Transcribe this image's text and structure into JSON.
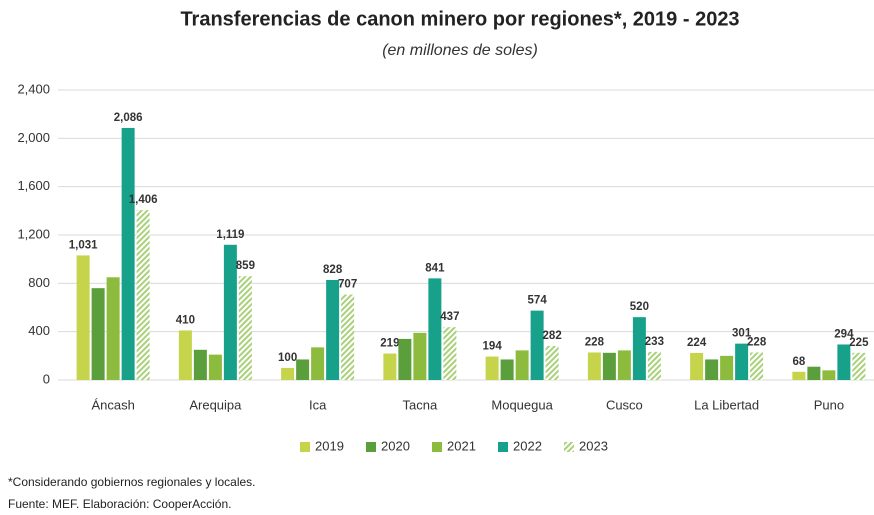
{
  "chart_data": {
    "type": "bar",
    "title": "Transferencias de canon minero por regiones*, 2019 - 2023",
    "subtitle": "(en millones de soles)",
    "categories": [
      "Áncash",
      "Arequipa",
      "Ica",
      "Tacna",
      "Moquegua",
      "Cusco",
      "La Libertad",
      "Puno"
    ],
    "series": [
      {
        "name": "2019",
        "color": "#c5d44a",
        "label_color": "#a8b832",
        "values": [
          1031,
          410,
          100,
          219,
          194,
          228,
          224,
          68
        ],
        "value_labels": [
          "1,031",
          "410",
          "100",
          "219",
          "194",
          "228",
          "224",
          "68"
        ]
      },
      {
        "name": "2020",
        "color": "#5b9e3c",
        "values": [
          760,
          250,
          170,
          340,
          170,
          225,
          170,
          110
        ]
      },
      {
        "name": "2021",
        "color": "#8dbb3d",
        "values": [
          850,
          210,
          270,
          390,
          245,
          245,
          200,
          80
        ]
      },
      {
        "name": "2022",
        "color": "#17a08a",
        "label_color": "#17a08a",
        "values": [
          2086,
          1119,
          828,
          841,
          574,
          520,
          301,
          294
        ],
        "value_labels": [
          "2,086",
          "1,119",
          "828",
          "841",
          "574",
          "520",
          "301",
          "294"
        ]
      },
      {
        "name": "2023",
        "color": "#a9d17a",
        "label_color": "#8dbb3d",
        "hatch": true,
        "values": [
          1406,
          859,
          707,
          437,
          282,
          233,
          228,
          225
        ],
        "value_labels": [
          "1,406",
          "859",
          "707",
          "437",
          "282",
          "233",
          "228",
          "225"
        ]
      }
    ],
    "ylim": [
      0,
      2400
    ],
    "yticks": [
      0,
      400,
      800,
      {
        "value": 1200,
        "label": "1,200"
      },
      {
        "value": 1600,
        "label": "1,600"
      },
      {
        "value": 2000,
        "label": "2,000"
      },
      {
        "value": 2400,
        "label": "2,400"
      }
    ],
    "grid": true,
    "legend": "bottom",
    "notes": [
      "*Considerando gobiernos regionales y locales.",
      "Fuente: MEF. Elaboración: CooperAcción."
    ]
  }
}
